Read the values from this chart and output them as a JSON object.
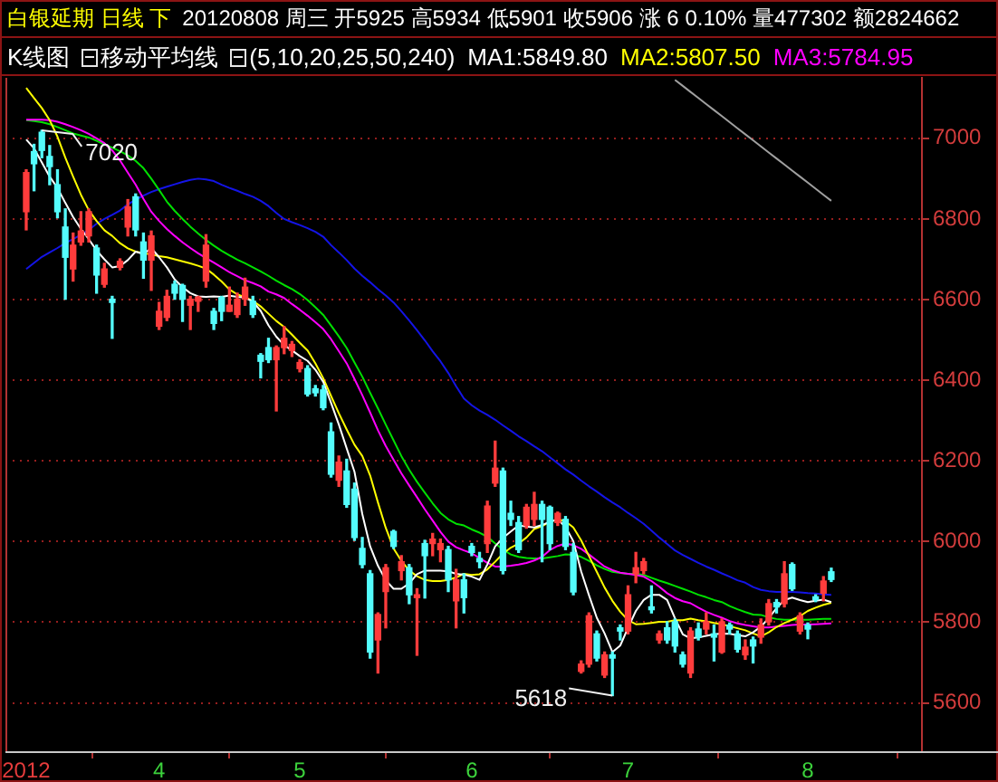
{
  "chart_data": {
    "type": "candlestick",
    "title": "白银延期 日线 下",
    "subtitle": "20120808 周三 开5925 高5934 低5901 收5906 涨 6 0.10% 量477302 额2824662",
    "annotations": [
      "K线图",
      "移动平均线",
      "(5,10,20,25,50,240)",
      "7020",
      "5618"
    ],
    "categories": [
      "2012",
      null,
      null,
      null,
      null,
      null,
      null,
      null,
      null,
      null,
      null,
      null,
      null,
      null,
      null,
      null,
      null,
      "4",
      null,
      null,
      null,
      null,
      null,
      null,
      null,
      null,
      null,
      null,
      null,
      null,
      null,
      null,
      null,
      null,
      null,
      "5",
      null,
      null,
      null,
      null,
      null,
      null,
      null,
      null,
      null,
      null,
      null,
      null,
      null,
      null,
      null,
      null,
      null,
      null,
      null,
      null,
      null,
      "6",
      null,
      null,
      null,
      null,
      null,
      null,
      null,
      null,
      null,
      null,
      null,
      null,
      null,
      null,
      null,
      null,
      null,
      null,
      null,
      "7",
      null,
      null,
      null,
      null,
      null,
      null,
      null,
      null,
      null,
      null,
      null,
      null,
      null,
      null,
      null,
      null,
      null,
      null,
      null,
      null,
      null,
      null,
      "8",
      null,
      null,
      null
    ],
    "ohlc": [
      [
        6818,
        6922,
        6773,
        6915
      ],
      [
        6967,
        6985,
        6870,
        6937
      ],
      [
        7015,
        7020,
        6952,
        6970
      ],
      [
        6955,
        6982,
        6885,
        6930
      ],
      [
        6885,
        6922,
        6803,
        6818
      ],
      [
        6780,
        6825,
        6601,
        6705
      ],
      [
        6676,
        6765,
        6646,
        6735
      ],
      [
        6743,
        6818,
        6735,
        6770
      ],
      [
        6758,
        6825,
        6743,
        6818
      ],
      [
        6728,
        6735,
        6616,
        6661
      ],
      [
        6638,
        6690,
        6631,
        6676
      ],
      [
        6601,
        6608,
        6504,
        6593
      ],
      [
        6680,
        6701,
        6674,
        6695
      ],
      [
        6780,
        6848,
        6758,
        6830
      ],
      [
        6855,
        6862,
        6758,
        6773
      ],
      [
        6743,
        6765,
        6653,
        6698
      ],
      [
        6698,
        6770,
        6623,
        6758
      ],
      [
        6534,
        6593,
        6526,
        6571
      ],
      [
        6556,
        6623,
        6548,
        6608
      ],
      [
        6638,
        6646,
        6601,
        6616
      ],
      [
        6635,
        6638,
        6546,
        6601
      ],
      [
        6586,
        6608,
        6526,
        6601
      ],
      [
        6596,
        6608,
        6571,
        6606
      ],
      [
        6646,
        6761,
        6631,
        6735
      ],
      [
        6571,
        6578,
        6526,
        6541
      ],
      [
        6605,
        6608,
        6548,
        6571
      ],
      [
        6571,
        6631,
        6571,
        6586
      ],
      [
        6563,
        6616,
        6556,
        6601
      ],
      [
        6601,
        6653,
        6586,
        6631
      ],
      [
        6596,
        6608,
        6556,
        6563
      ],
      [
        6462,
        6466,
        6406,
        6447
      ],
      [
        6481,
        6504,
        6444,
        6451
      ],
      [
        6451,
        6485,
        6324,
        6481
      ],
      [
        6481,
        6533,
        6466,
        6504
      ],
      [
        6474,
        6496,
        6459,
        6489
      ],
      [
        6429,
        6451,
        6421,
        6444
      ],
      [
        6429,
        6436,
        6361,
        6366
      ],
      [
        6379,
        6387,
        6361,
        6369
      ],
      [
        6376,
        6387,
        6327,
        6332
      ],
      [
        6272,
        6294,
        6160,
        6167
      ],
      [
        6152,
        6212,
        6137,
        6197
      ],
      [
        6175,
        6204,
        6085,
        6092
      ],
      [
        6130,
        6145,
        6003,
        6010
      ],
      [
        5983,
        6010,
        5935,
        5943
      ],
      [
        5920,
        5928,
        5711,
        5726
      ],
      [
        5756,
        5823,
        5674,
        5819
      ],
      [
        5876,
        5943,
        5786,
        5935
      ],
      [
        6025,
        6028,
        5983,
        5988
      ],
      [
        5928,
        5965,
        5905,
        5950
      ],
      [
        5935,
        5943,
        5846,
        5868
      ],
      [
        5861,
        5883,
        5718,
        5868
      ],
      [
        5995,
        6003,
        5860,
        5965
      ],
      [
        5995,
        6020,
        5965,
        6006
      ],
      [
        5980,
        6006,
        5950,
        5995
      ],
      [
        5980,
        5988,
        5876,
        5905
      ],
      [
        5853,
        5931,
        5786,
        5905
      ],
      [
        5905,
        5920,
        5823,
        5861
      ],
      [
        5988,
        5995,
        5965,
        5973
      ],
      [
        5958,
        5973,
        5935,
        5950
      ],
      [
        5995,
        6100,
        5973,
        6088
      ],
      [
        6145,
        6249,
        6137,
        6182
      ],
      [
        6175,
        6182,
        5920,
        5928
      ],
      [
        6070,
        6100,
        6040,
        6055
      ],
      [
        6047,
        6062,
        5973,
        5980
      ],
      [
        6040,
        6092,
        6033,
        6085
      ],
      [
        6055,
        6122,
        6040,
        6092
      ],
      [
        6092,
        6100,
        5950,
        6055
      ],
      [
        6085,
        6088,
        5980,
        5995
      ],
      [
        6047,
        6073,
        6040,
        6070
      ],
      [
        6055,
        6062,
        5980,
        5988
      ],
      [
        5973,
        5995,
        5868,
        5875
      ],
      [
        5678,
        5704,
        5674,
        5696
      ],
      [
        5696,
        5823,
        5689,
        5816
      ],
      [
        5771,
        5778,
        5704,
        5711
      ],
      [
        5669,
        5726,
        5663,
        5719
      ],
      [
        5719,
        5726,
        5618,
        5711
      ],
      [
        5786,
        5793,
        5756,
        5778
      ],
      [
        5778,
        5890,
        5771,
        5868
      ],
      [
        5920,
        5973,
        5898,
        5935
      ],
      [
        5928,
        5958,
        5920,
        5950
      ],
      [
        5838,
        5890,
        5823,
        5831
      ],
      [
        5756,
        5778,
        5748,
        5771
      ],
      [
        5786,
        5801,
        5748,
        5756
      ],
      [
        5801,
        5808,
        5726,
        5741
      ],
      [
        5719,
        5726,
        5689,
        5696
      ],
      [
        5674,
        5786,
        5663,
        5778
      ],
      [
        5783,
        5798,
        5756,
        5763
      ],
      [
        5783,
        5823,
        5771,
        5801
      ],
      [
        5771,
        5793,
        5704,
        5763
      ],
      [
        5726,
        5808,
        5723,
        5801
      ],
      [
        5793,
        5798,
        5771,
        5783
      ],
      [
        5771,
        5778,
        5726,
        5733
      ],
      [
        5719,
        5756,
        5708,
        5738
      ],
      [
        5756,
        5763,
        5699,
        5741
      ],
      [
        5763,
        5808,
        5748,
        5793
      ],
      [
        5801,
        5856,
        5793,
        5846
      ],
      [
        5849,
        5856,
        5823,
        5838
      ],
      [
        5846,
        5950,
        5838,
        5920
      ],
      [
        5943,
        5947,
        5879,
        5883
      ],
      [
        5778,
        5823,
        5771,
        5816
      ],
      [
        5793,
        5798,
        5759,
        5783
      ],
      [
        5863,
        5868,
        5851,
        5856
      ],
      [
        5872,
        5913,
        5853,
        5902
      ],
      [
        5925,
        5934,
        5901,
        5906
      ]
    ],
    "colors": [
      "#ff3c3c",
      "#54fcfc",
      "#54fcfc",
      "#54fcfc",
      "#54fcfc",
      "#54fcfc",
      "#ff3c3c",
      "#ff3c3c",
      "#ff3c3c",
      "#54fcfc",
      "#ff3c3c",
      "#54fcfc",
      "#ff3c3c",
      "#ff3c3c",
      "#54fcfc",
      "#54fcfc",
      "#ff3c3c",
      "#ff3c3c",
      "#ff3c3c",
      "#54fcfc",
      "#54fcfc",
      "#ff3c3c",
      "#ff3c3c",
      "#ff3c3c",
      "#54fcfc",
      "#54fcfc",
      "#ff3c3c",
      "#ff3c3c",
      "#ff3c3c",
      "#54fcfc",
      "#54fcfc",
      "#54fcfc",
      "#ff3c3c",
      "#ff3c3c",
      "#ff3c3c",
      "#ff3c3c",
      "#54fcfc",
      "#54fcfc",
      "#54fcfc",
      "#54fcfc",
      "#ff3c3c",
      "#54fcfc",
      "#54fcfc",
      "#54fcfc",
      "#54fcfc",
      "#ff3c3c",
      "#ff3c3c",
      "#54fcfc",
      "#ff3c3c",
      "#54fcfc",
      "#ff3c3c",
      "#54fcfc",
      "#ff3c3c",
      "#ff3c3c",
      "#54fcfc",
      "#ff3c3c",
      "#54fcfc",
      "#54fcfc",
      "#54fcfc",
      "#ff3c3c",
      "#ff3c3c",
      "#54fcfc",
      "#54fcfc",
      "#54fcfc",
      "#ff3c3c",
      "#ff3c3c",
      "#54fcfc",
      "#54fcfc",
      "#ff3c3c",
      "#54fcfc",
      "#54fcfc",
      "#ff3c3c",
      "#ff3c3c",
      "#54fcfc",
      "#ff3c3c",
      "#54fcfc",
      "#54fcfc",
      "#ff3c3c",
      "#ff3c3c",
      "#ff3c3c",
      "#54fcfc",
      "#ff3c3c",
      "#54fcfc",
      "#54fcfc",
      "#54fcfc",
      "#ff3c3c",
      "#54fcfc",
      "#ff3c3c",
      "#54fcfc",
      "#ff3c3c",
      "#54fcfc",
      "#54fcfc",
      "#ff3c3c",
      "#54fcfc",
      "#ff3c3c",
      "#ff3c3c",
      "#54fcfc",
      "#ff3c3c",
      "#54fcfc",
      "#ff3c3c",
      "#54fcfc",
      "#54fcfc",
      "#ff3c3c",
      "#54fcfc"
    ],
    "series": [
      {
        "type": "line",
        "name": "MA1:5849.80",
        "color": "#ffffff",
        "values": [
          6997,
          6975,
          6940,
          6905,
          6877,
          6840,
          6805,
          6775,
          6750,
          6722,
          6700,
          6680,
          6683,
          6698,
          6719,
          6713,
          6728,
          6705,
          6680,
          6650,
          6631,
          6616,
          6608,
          6607,
          6608,
          6607,
          6610,
          6607,
          6605,
          6595,
          6572,
          6536,
          6508,
          6487,
          6474,
          6460,
          6448,
          6426,
          6396,
          6344,
          6290,
          6231,
          6173,
          6068,
          5988,
          5940,
          5904,
          5883,
          5883,
          5896,
          5919,
          5928,
          5928,
          5928,
          5926,
          5920,
          5918,
          5913,
          5905,
          5943,
          5988,
          6009,
          6025,
          6040,
          6037,
          6035,
          6041,
          6049,
          6055,
          6036,
          6001,
          5926,
          5867,
          5811,
          5772,
          5726,
          5742,
          5786,
          5828,
          5855,
          5868,
          5868,
          5855,
          5810,
          5770,
          5760,
          5762,
          5766,
          5770,
          5772,
          5771,
          5768,
          5765,
          5775,
          5789,
          5810,
          5835,
          5855,
          5861,
          5855,
          5850,
          5853,
          5856,
          5849.8
        ]
      },
      {
        "type": "line",
        "name": "MA2:5807.50",
        "color": "#ffff00",
        "values": [
          7125,
          7100,
          7075,
          7045,
          7004,
          6952,
          6905,
          6860,
          6822,
          6795,
          6772,
          6758,
          6740,
          6727,
          6719,
          6715,
          6712,
          6708,
          6705,
          6700,
          6695,
          6690,
          6684,
          6677,
          6662,
          6645,
          6625,
          6613,
          6606,
          6597,
          6583,
          6565,
          6547,
          6532,
          6513,
          6493,
          6474,
          6442,
          6405,
          6361,
          6318,
          6278,
          6240,
          6212,
          6164,
          6097,
          6034,
          5983,
          5952,
          5928,
          5914,
          5905,
          5902,
          5902,
          5905,
          5911,
          5920,
          5917,
          5919,
          5931,
          5950,
          5970,
          5985,
          5995,
          6010,
          6031,
          6038,
          6049,
          6055,
          6050,
          6035,
          6003,
          5964,
          5925,
          5886,
          5853,
          5826,
          5805,
          5795,
          5796,
          5798,
          5801,
          5801,
          5805,
          5805,
          5809,
          5805,
          5802,
          5798,
          5795,
          5790,
          5785,
          5780,
          5772,
          5765,
          5775,
          5788,
          5798,
          5806,
          5815,
          5828,
          5836,
          5843,
          5848
        ]
      },
      {
        "type": "line",
        "name": "MA3:5784.95",
        "color": "#ff00ff",
        "values": [
          7046,
          7046,
          7046,
          7045,
          7041,
          7035,
          7028,
          7020,
          7011,
          7000,
          6988,
          6970,
          6945,
          6915,
          6885,
          6850,
          6818,
          6795,
          6775,
          6758,
          6742,
          6728,
          6715,
          6703,
          6692,
          6680,
          6668,
          6658,
          6648,
          6641,
          6633,
          6620,
          6613,
          6604,
          6589,
          6575,
          6560,
          6544,
          6527,
          6502,
          6472,
          6442,
          6403,
          6363,
          6320,
          6276,
          6237,
          6203,
          6169,
          6139,
          6110,
          6080,
          6052,
          6024,
          6000,
          5986,
          5978,
          5971,
          5959,
          5947,
          5938,
          5938,
          5940,
          5943,
          5947,
          5953,
          5962,
          5979,
          5989,
          5995,
          5991,
          5982,
          5968,
          5953,
          5938,
          5929,
          5923,
          5920,
          5917,
          5913,
          5902,
          5888,
          5872,
          5860,
          5852,
          5847,
          5836,
          5826,
          5818,
          5811,
          5803,
          5797,
          5793,
          5790,
          5787,
          5787,
          5789,
          5791,
          5793,
          5794,
          5794,
          5795,
          5796,
          5797
        ]
      },
      {
        "type": "line",
        "color": "#00e000",
        "values": [
          7045,
          7043,
          7040,
          7035,
          7028,
          7020,
          7012,
          7007,
          7002,
          6994,
          6985,
          6977,
          6968,
          6958,
          6944,
          6926,
          6900,
          6872,
          6843,
          6820,
          6800,
          6781,
          6764,
          6748,
          6734,
          6721,
          6710,
          6699,
          6690,
          6680,
          6670,
          6659,
          6647,
          6636,
          6626,
          6614,
          6599,
          6581,
          6562,
          6536,
          6509,
          6480,
          6444,
          6409,
          6369,
          6330,
          6290,
          6251,
          6212,
          6178,
          6148,
          6121,
          6095,
          6071,
          6055,
          6044,
          6040,
          6030,
          6022,
          6012,
          5995,
          5980,
          5968,
          5962,
          5959,
          5958,
          5958,
          5961,
          5964,
          5968,
          5967,
          5962,
          5952,
          5941,
          5932,
          5925,
          5922,
          5920,
          5920,
          5917,
          5910,
          5903,
          5897,
          5890,
          5883,
          5876,
          5868,
          5862,
          5855,
          5850,
          5840,
          5832,
          5825,
          5819,
          5818,
          5812,
          5808,
          5806,
          5806,
          5806,
          5806,
          5807,
          5808,
          5808
        ]
      },
      {
        "type": "line",
        "color": "#1414e6",
        "values": [
          6676,
          6691,
          6706,
          6717,
          6728,
          6740,
          6750,
          6761,
          6773,
          6788,
          6800,
          6810,
          6821,
          6836,
          6848,
          6858,
          6867,
          6874,
          6880,
          6886,
          6892,
          6897,
          6900,
          6898,
          6894,
          6885,
          6877,
          6870,
          6862,
          6855,
          6845,
          6832,
          6815,
          6800,
          6792,
          6785,
          6777,
          6768,
          6756,
          6735,
          6717,
          6698,
          6677,
          6659,
          6643,
          6626,
          6610,
          6593,
          6571,
          6548,
          6524,
          6499,
          6472,
          6447,
          6418,
          6385,
          6355,
          6338,
          6325,
          6314,
          6302,
          6288,
          6275,
          6261,
          6249,
          6236,
          6224,
          6209,
          6194,
          6179,
          6166,
          6151,
          6137,
          6124,
          6110,
          6097,
          6085,
          6071,
          6058,
          6044,
          6027,
          6010,
          5994,
          5978,
          5967,
          5957,
          5947,
          5938,
          5930,
          5921,
          5913,
          5904,
          5898,
          5887,
          5880,
          5877,
          5875,
          5875,
          5875,
          5874,
          5872,
          5871,
          5869,
          5868
        ]
      },
      {
        "type": "line",
        "color": "#a0a0a0",
        "values": [
          null,
          null,
          null,
          null,
          null,
          null,
          null,
          null,
          null,
          null,
          null,
          null,
          null,
          null,
          null,
          null,
          null,
          null,
          null,
          null,
          null,
          null,
          null,
          null,
          null,
          null,
          null,
          null,
          null,
          null,
          null,
          null,
          null,
          null,
          null,
          null,
          null,
          null,
          null,
          null,
          null,
          null,
          null,
          null,
          null,
          null,
          null,
          null,
          null,
          null,
          null,
          null,
          null,
          null,
          null,
          null,
          null,
          null,
          null,
          null,
          null,
          null,
          null,
          null,
          null,
          null,
          null,
          null,
          null,
          null,
          null,
          null,
          null,
          null,
          null,
          null,
          null,
          null,
          null,
          null,
          null,
          null,
          null,
          7145,
          7130,
          7115,
          7100,
          7085,
          7070,
          7055,
          7040,
          7025,
          7010,
          6995,
          6980,
          6965,
          6950,
          6935,
          6920,
          6905,
          6890,
          6875,
          6860,
          6845
        ]
      }
    ],
    "ylim": [
      5480,
      7150
    ],
    "yticks": [
      5600,
      5800,
      6000,
      6200,
      6400,
      6600,
      6800,
      7000
    ],
    "grid": "y",
    "legend": "top right",
    "marker": "none"
  }
}
